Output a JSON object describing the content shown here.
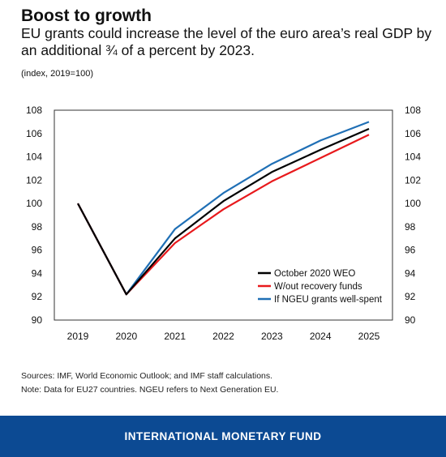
{
  "header": {
    "title": "Boost to growth",
    "subtitle": "EU grants could increase the level of the euro area’s real GDP by an additional ¾ of a percent by 2023.",
    "units": "(index, 2019=100)"
  },
  "chart_data": {
    "type": "line",
    "x": [
      "2019",
      "2020",
      "2021",
      "2022",
      "2023",
      "2024",
      "2025"
    ],
    "series": [
      {
        "name": "October 2020 WEO",
        "color": "#000000",
        "values": [
          100,
          92.2,
          97.0,
          100.2,
          102.7,
          104.6,
          106.4
        ]
      },
      {
        "name": "W/out recovery funds",
        "color": "#e8191c",
        "values": [
          100,
          92.2,
          96.6,
          99.5,
          101.9,
          103.9,
          105.9
        ]
      },
      {
        "name": "If NGEU grants well-spent",
        "color": "#1f6fb5",
        "values": [
          100,
          92.2,
          97.8,
          100.9,
          103.4,
          105.4,
          107.0
        ]
      }
    ],
    "ylim": [
      90,
      108
    ],
    "yticks": [
      90,
      92,
      94,
      96,
      98,
      100,
      102,
      104,
      106,
      108
    ],
    "y_axis_both_sides": true,
    "grid": false,
    "legend_position": "bottom-right"
  },
  "notes": {
    "sources": "Sources: IMF, World Economic Outlook; and IMF staff calculations.",
    "note": "Note: Data for EU27 countries. NGEU refers to Next Generation EU."
  },
  "footer": {
    "label": "INTERNATIONAL MONETARY FUND",
    "background": "#0c4a93"
  }
}
